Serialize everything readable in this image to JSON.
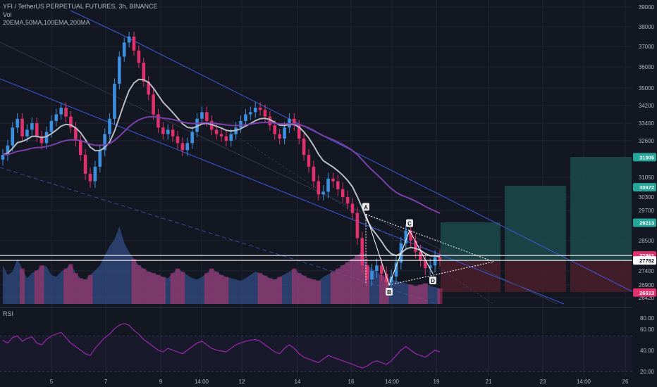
{
  "header": {
    "symbol_line": "YFI / TetherUS PERPETUAL FUTURES, 3h, BINANCE",
    "vol_label": "Vol",
    "ma_line": "20EMA,50MA,100EMA,200MA"
  },
  "rsi_label": "RSI",
  "colors": {
    "background": "#131722",
    "up": "#3d8fe0",
    "down": "#e0316c",
    "channel": "#3b5bdb",
    "ema20": "#b7bcc5",
    "ma200": "#7b3fa8",
    "rsi": "#9c27b0",
    "target": "#1c4a4a",
    "stop": "#4a1f2c"
  },
  "chart_data": [
    {
      "type": "candlestick",
      "yaxis": {
        "ticks": [
          39000,
          38000,
          37000,
          36000,
          35000,
          34200,
          33400,
          32600,
          31050,
          30300,
          29700,
          28500,
          27400,
          26900,
          26420
        ],
        "tick_labels": [
          "39000",
          "38000",
          "37000",
          "36000",
          "35000",
          "34200",
          "33400",
          "32600",
          "31050",
          "30300",
          "29700",
          "28500",
          "27400",
          "26900",
          "26420"
        ]
      },
      "xaxis": {
        "tick_labels": [
          "5",
          "7",
          "9",
          "14:00",
          "12",
          "14",
          "16",
          "14:00",
          "19",
          "21",
          "23",
          "14:00",
          "26"
        ]
      },
      "price_tags": [
        {
          "value": 31905,
          "label": "31905",
          "color": "#26a69a"
        },
        {
          "value": 30672,
          "label": "30672",
          "color": "#26a69a"
        },
        {
          "value": 29213,
          "label": "29213",
          "color": "#26a69a"
        },
        {
          "value": 27961,
          "label": "27961",
          "color": "#e0316c"
        },
        {
          "value": 27782,
          "label": "27782",
          "color": "#131722"
        },
        {
          "value": 26613,
          "label": "26613",
          "color": "#e0316c"
        }
      ],
      "pattern_points": [
        {
          "label": "A",
          "value": 29550
        },
        {
          "label": "B",
          "value": 26900
        },
        {
          "label": "C",
          "value": 28900
        },
        {
          "label": "D",
          "value": 27300
        }
      ],
      "closes": [
        32000,
        32400,
        33200,
        33600,
        32800,
        33100,
        33400,
        32800,
        32500,
        33000,
        33500,
        33800,
        34100,
        33700,
        33200,
        32600,
        32000,
        31200,
        30900,
        31500,
        32200,
        32900,
        33600,
        35200,
        36500,
        37200,
        37500,
        36800,
        36200,
        35300,
        34700,
        33800,
        33200,
        32900,
        33100,
        32800,
        32500,
        32200,
        32500,
        33000,
        33600,
        33900,
        33500,
        33100,
        32900,
        32800,
        32600,
        32900,
        33200,
        33500,
        33800,
        33900,
        34100,
        34000,
        33700,
        33300,
        32900,
        32700,
        33200,
        33600,
        33300,
        32700,
        32000,
        31500,
        30900,
        30400,
        30500,
        31000,
        30900,
        30600,
        30300,
        30000,
        29600,
        28600,
        27600,
        27100,
        27400,
        27600,
        27300,
        27000,
        27200,
        27700,
        28400,
        28900,
        28500,
        28100,
        27800,
        27500,
        27600,
        27900,
        27800
      ]
    },
    {
      "type": "area",
      "name": "Vol",
      "values": [
        60,
        45,
        50,
        70,
        55,
        40,
        48,
        52,
        60,
        58,
        45,
        42,
        50,
        55,
        62,
        48,
        40,
        38,
        45,
        52,
        60,
        75,
        90,
        100,
        120,
        95,
        80,
        70,
        60,
        55,
        50,
        48,
        45,
        42,
        40,
        48,
        55,
        50,
        45,
        40,
        38,
        42,
        48,
        55,
        50,
        45,
        42,
        40,
        38,
        36,
        40,
        45,
        50,
        48,
        44,
        40,
        38,
        42,
        46,
        50,
        55,
        48,
        44,
        40,
        38,
        36,
        42,
        46,
        50,
        55,
        60,
        65,
        70,
        75,
        80,
        60,
        55,
        50,
        45,
        40,
        38,
        36,
        34,
        32,
        30,
        28,
        30,
        32,
        28,
        26,
        24
      ]
    },
    {
      "type": "line",
      "name": "RSI",
      "yaxis": {
        "ticks": [
          80,
          60,
          40,
          20
        ],
        "tick_labels": [
          "80.00",
          "60.00",
          "40.00",
          "20.00"
        ]
      },
      "values": [
        55,
        52,
        58,
        60,
        54,
        57,
        59,
        52,
        50,
        56,
        60,
        62,
        64,
        58,
        52,
        48,
        44,
        40,
        38,
        46,
        52,
        58,
        62,
        68,
        72,
        74,
        72,
        66,
        62,
        56,
        52,
        48,
        44,
        42,
        46,
        44,
        42,
        40,
        44,
        48,
        52,
        54,
        50,
        46,
        44,
        43,
        42,
        46,
        50,
        52,
        54,
        55,
        56,
        54,
        50,
        46,
        42,
        40,
        46,
        50,
        46,
        40,
        36,
        34,
        32,
        30,
        34,
        38,
        36,
        34,
        32,
        30,
        28,
        26,
        24,
        26,
        30,
        32,
        30,
        28,
        32,
        38,
        44,
        48,
        44,
        40,
        38,
        36,
        40,
        44,
        42
      ]
    }
  ]
}
